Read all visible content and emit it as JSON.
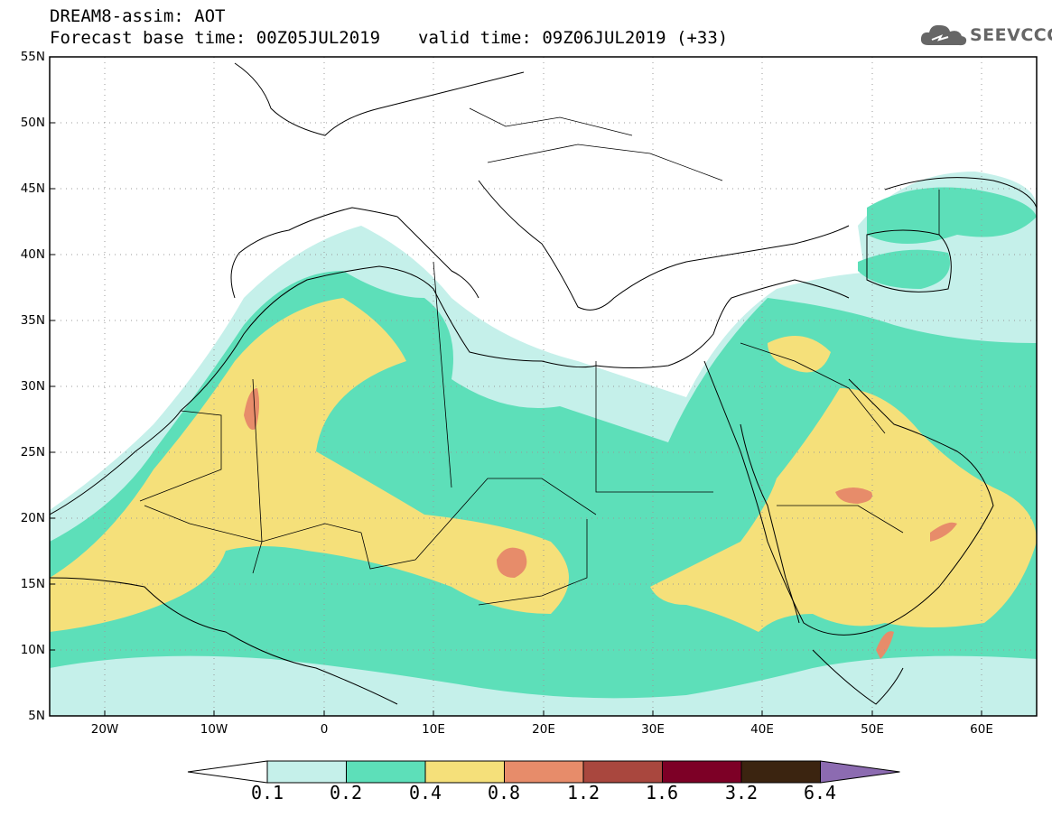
{
  "header": {
    "title": "DREAM8-assim: AOT",
    "base_time": "Forecast base time: 00Z05JUL2019",
    "valid_time": "valid time: 09Z06JUL2019 (+33)"
  },
  "logo": {
    "text": "SEEVCCC",
    "icon": "cloud-icon"
  },
  "map": {
    "lat_labels": [
      "55N",
      "50N",
      "45N",
      "40N",
      "35N",
      "30N",
      "25N",
      "20N",
      "15N",
      "10N",
      "5N"
    ],
    "lon_labels": [
      "20W",
      "10W",
      "0",
      "10E",
      "20E",
      "30E",
      "40E",
      "50E",
      "60E"
    ],
    "extent": {
      "lon": [
        -25,
        65
      ],
      "lat": [
        5,
        55
      ]
    },
    "grid": "dotted"
  },
  "colorbar": {
    "levels": [
      "0.1",
      "0.2",
      "0.4",
      "0.8",
      "1.2",
      "1.6",
      "3.2",
      "6.4"
    ],
    "colors": [
      "#c5f0ea",
      "#5ddfb9",
      "#f5e07a",
      "#e78c6a",
      "#a9473e",
      "#7d0026",
      "#3b2410",
      "#8c6bb1"
    ],
    "lower_extend_color": "#ffffff"
  }
}
